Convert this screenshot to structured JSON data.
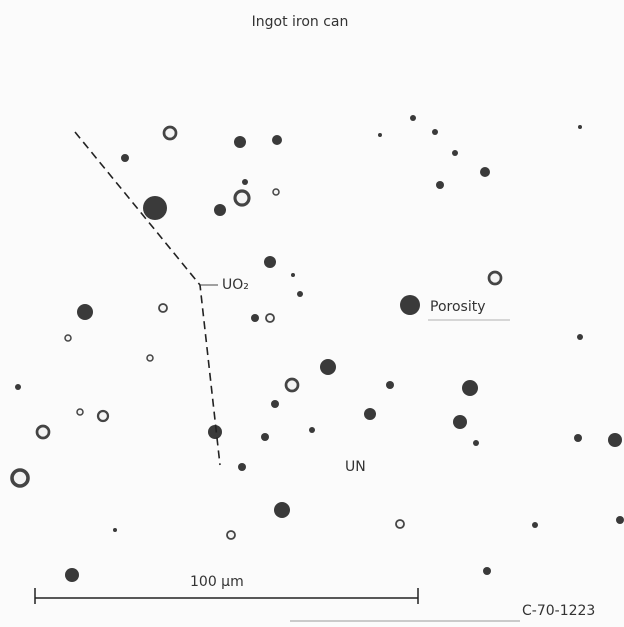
{
  "labels": {
    "top": "Ingot iron can",
    "phase_a": "UO₂",
    "pore": "Porosity",
    "phase_b": "UN",
    "scale": "100 μm",
    "figure_id": "C-70-1223"
  }
}
